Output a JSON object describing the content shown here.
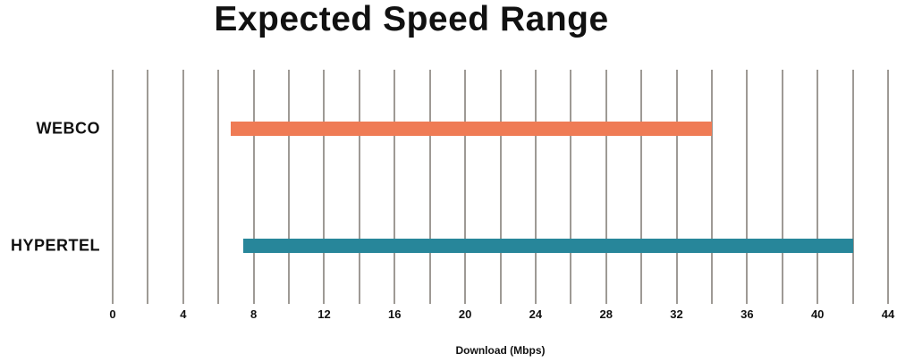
{
  "chart_data": {
    "type": "bar",
    "subtype": "horizontal-range-bars",
    "title": "Expected Speed Range",
    "xlabel": "Download (Mbps)",
    "categories": [
      "WEBCO",
      "HYPERTEL"
    ],
    "series": [
      {
        "name": "WEBCO",
        "range_mbps": [
          6.7,
          34
        ],
        "color": "#ef7b55"
      },
      {
        "name": "HYPERTEL",
        "range_mbps": [
          7.4,
          42
        ],
        "color": "#27869a"
      }
    ],
    "xlim": [
      0,
      44
    ],
    "x_ticks": [
      0,
      4,
      8,
      12,
      16,
      20,
      24,
      28,
      32,
      36,
      40,
      44
    ],
    "gridline_step": 2,
    "grid": "vertical-only",
    "gridline_color": "#9e9a95",
    "legend": "none",
    "text_color": "#111111",
    "background": "#ffffff"
  }
}
